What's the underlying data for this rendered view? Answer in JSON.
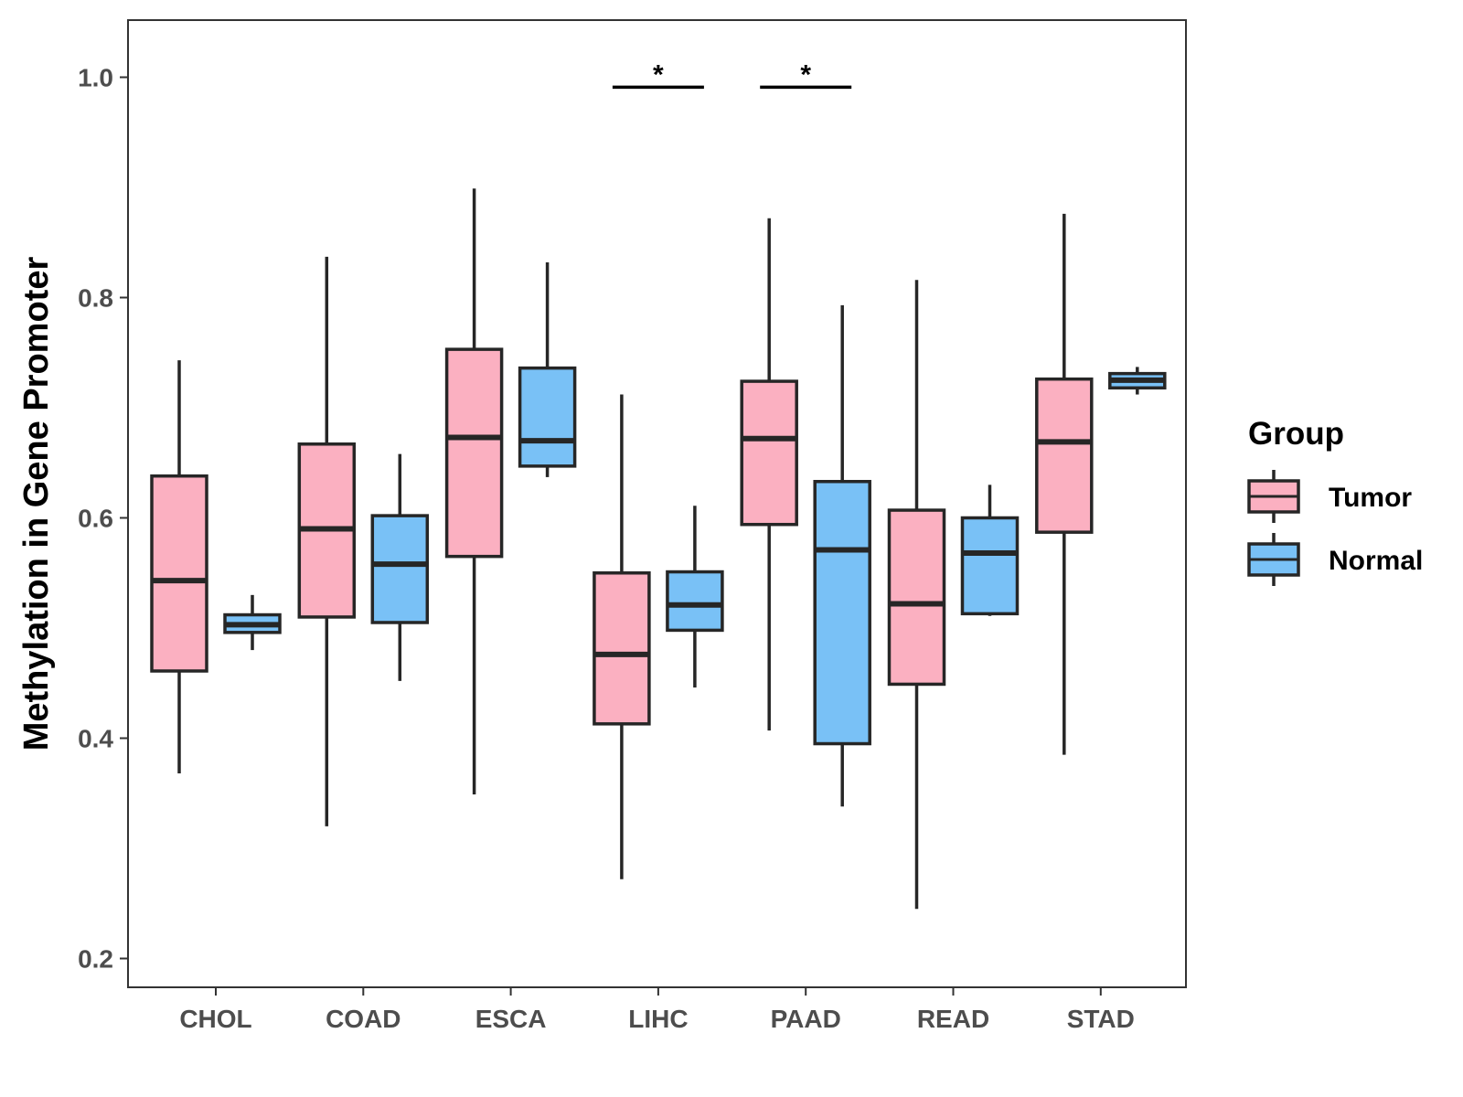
{
  "chart_data": {
    "type": "boxplot",
    "title": "",
    "xlabel": "",
    "ylabel": "Methylation in Gene Promoter",
    "ylim": [
      0.175,
      1.05
    ],
    "yticks": [
      0.2,
      0.4,
      0.6,
      0.8,
      1.0
    ],
    "ytick_labels": [
      "0.2",
      "0.4",
      "0.6",
      "0.8",
      "1.0"
    ],
    "categories": [
      "CHOL",
      "COAD",
      "ESCA",
      "LIHC",
      "PAAD",
      "READ",
      "STAD"
    ],
    "legend": {
      "title": "Group",
      "position": "right",
      "entries": [
        {
          "name": "Tumor",
          "color": "#fbb0c1"
        },
        {
          "name": "Normal",
          "color": "#79c1f6"
        }
      ]
    },
    "series": [
      {
        "name": "Tumor",
        "color": "#fbb0c1",
        "boxes": [
          {
            "category": "CHOL",
            "min": 0.368,
            "q1": 0.461,
            "median": 0.543,
            "q3": 0.638,
            "max": 0.743
          },
          {
            "category": "COAD",
            "min": 0.32,
            "q1": 0.51,
            "median": 0.59,
            "q3": 0.667,
            "max": 0.837
          },
          {
            "category": "ESCA",
            "min": 0.349,
            "q1": 0.565,
            "median": 0.673,
            "q3": 0.753,
            "max": 0.899
          },
          {
            "category": "LIHC",
            "min": 0.272,
            "q1": 0.413,
            "median": 0.476,
            "q3": 0.55,
            "max": 0.712
          },
          {
            "category": "PAAD",
            "min": 0.407,
            "q1": 0.594,
            "median": 0.672,
            "q3": 0.724,
            "max": 0.872
          },
          {
            "category": "READ",
            "min": 0.245,
            "q1": 0.449,
            "median": 0.522,
            "q3": 0.607,
            "max": 0.816
          },
          {
            "category": "STAD",
            "min": 0.385,
            "q1": 0.587,
            "median": 0.669,
            "q3": 0.726,
            "max": 0.876
          }
        ]
      },
      {
        "name": "Normal",
        "color": "#79c1f6",
        "boxes": [
          {
            "category": "CHOL",
            "min": 0.48,
            "q1": 0.496,
            "median": 0.503,
            "q3": 0.512,
            "max": 0.53
          },
          {
            "category": "COAD",
            "min": 0.452,
            "q1": 0.505,
            "median": 0.558,
            "q3": 0.602,
            "max": 0.658
          },
          {
            "category": "ESCA",
            "min": 0.637,
            "q1": 0.647,
            "median": 0.67,
            "q3": 0.736,
            "max": 0.832
          },
          {
            "category": "LIHC",
            "min": 0.446,
            "q1": 0.498,
            "median": 0.521,
            "q3": 0.551,
            "max": 0.611
          },
          {
            "category": "PAAD",
            "min": 0.338,
            "q1": 0.395,
            "median": 0.571,
            "q3": 0.633,
            "max": 0.793
          },
          {
            "category": "READ",
            "min": 0.511,
            "q1": 0.513,
            "median": 0.568,
            "q3": 0.6,
            "max": 0.63
          },
          {
            "category": "STAD",
            "min": 0.712,
            "q1": 0.718,
            "median": 0.725,
            "q3": 0.731,
            "max": 0.737
          }
        ]
      }
    ],
    "annotations": [
      {
        "category": "LIHC",
        "label": "*",
        "y": 0.991
      },
      {
        "category": "PAAD",
        "label": "*",
        "y": 0.991
      }
    ]
  }
}
